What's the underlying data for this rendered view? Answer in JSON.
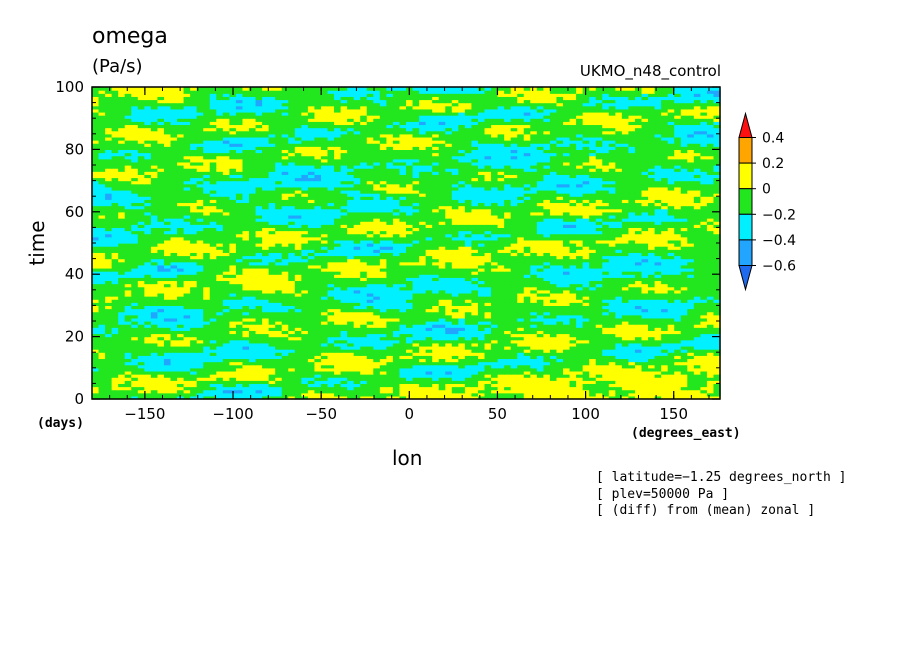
{
  "chart_data": {
    "type": "heatmap",
    "title": "omega",
    "units": "(Pa/s)",
    "run_name": "UKMO_n48_control",
    "xlabel": "lon",
    "xunits": "(degrees_east)",
    "ylabel": "time",
    "yunits": "(days)",
    "xlim": [
      -180,
      176.25
    ],
    "ylim": [
      0,
      100
    ],
    "x_ticks": [
      -150,
      -100,
      -50,
      0,
      50,
      100,
      150
    ],
    "y_ticks": [
      0,
      20,
      40,
      60,
      80,
      100
    ],
    "x_tick_labels": [
      "−150",
      "−100",
      "−50",
      "0",
      "50",
      "100",
      "150"
    ],
    "y_tick_labels": [
      "0",
      "20",
      "40",
      "60",
      "80",
      "100"
    ],
    "colorbar": {
      "levels": [
        -0.8,
        -0.6,
        -0.4,
        -0.2,
        0,
        0.2,
        0.4,
        0.6
      ],
      "colors": [
        "#1e6bf0",
        "#22a5ff",
        "#00f0ff",
        "#22e61e",
        "#ffff00",
        "#ffa500",
        "#ff1010"
      ],
      "tick_values": [
        -0.6,
        -0.4,
        -0.2,
        0,
        0.2,
        0.4
      ],
      "tick_labels": [
        "−0.6",
        "−0.4",
        "−0.2",
        "0",
        "0.2",
        "0.4"
      ]
    },
    "eastward_band_phase_days": [
      3,
      16,
      30,
      45,
      58,
      70,
      83,
      95
    ],
    "band_slope_days_per_degree": 0.06
  },
  "notes": [
    "[ latitude=−1.25 degrees_north ]",
    "[ plev=50000 Pa ]",
    "[ (diff) from (mean) zonal ]"
  ]
}
